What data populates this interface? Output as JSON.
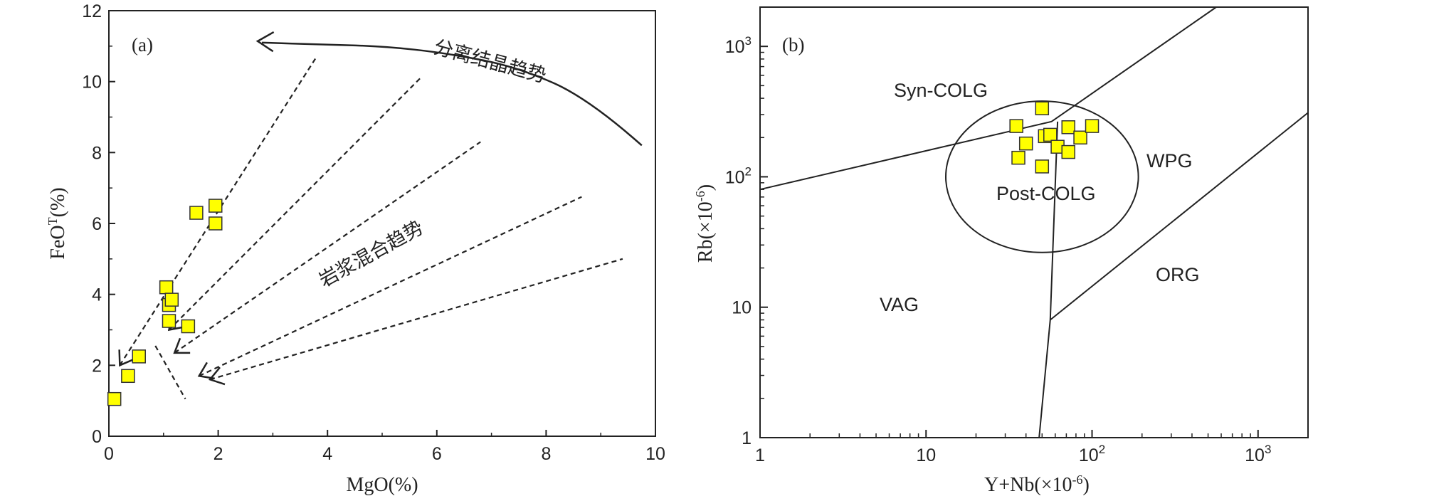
{
  "chart_data": [
    {
      "type": "scatter",
      "panel_label": "(a)",
      "xlabel": "MgO(%)",
      "ylabel": "FeO",
      "ylabel_sup": "T",
      "ylabel_tail": "(%)",
      "xlim": [
        0,
        10
      ],
      "ylim": [
        0,
        12
      ],
      "x_ticks": [
        0,
        2,
        4,
        6,
        8,
        10
      ],
      "y_ticks": [
        0,
        2,
        4,
        6,
        8,
        10,
        12
      ],
      "x_tick_labels": [
        "0",
        "2",
        "4",
        "6",
        "8",
        "10"
      ],
      "y_tick_labels": [
        "0",
        "2",
        "4",
        "6",
        "8",
        "10",
        "12"
      ],
      "points": [
        {
          "x": 0.1,
          "y": 1.05
        },
        {
          "x": 0.35,
          "y": 1.7
        },
        {
          "x": 0.55,
          "y": 2.25
        },
        {
          "x": 1.05,
          "y": 4.2
        },
        {
          "x": 1.1,
          "y": 3.7
        },
        {
          "x": 1.15,
          "y": 3.85
        },
        {
          "x": 1.1,
          "y": 3.25
        },
        {
          "x": 1.45,
          "y": 3.1
        },
        {
          "x": 1.6,
          "y": 6.3
        },
        {
          "x": 1.95,
          "y": 6.5
        },
        {
          "x": 1.95,
          "y": 6.0
        }
      ],
      "marker_color": "#ffff00",
      "dashed_lines": [
        {
          "from": [
            0.2,
            2.0
          ],
          "to": [
            3.8,
            10.7
          ]
        },
        {
          "from": [
            1.1,
            3.0
          ],
          "to": [
            5.7,
            10.1
          ]
        },
        {
          "from": [
            1.2,
            2.35
          ],
          "to": [
            6.8,
            8.3
          ]
        },
        {
          "from": [
            1.65,
            1.7
          ],
          "to": [
            8.65,
            6.75
          ]
        },
        {
          "from": [
            1.85,
            1.6
          ],
          "to": [
            9.4,
            5.0
          ]
        },
        {
          "from": [
            0.85,
            2.55
          ],
          "to": [
            1.4,
            1.05
          ]
        }
      ],
      "fractionation_curve": [
        [
          9.75,
          8.2
        ],
        [
          8.8,
          9.5
        ],
        [
          7.5,
          10.4
        ],
        [
          6.2,
          10.8
        ],
        [
          5.0,
          11.0
        ],
        [
          3.8,
          11.05
        ],
        [
          2.8,
          11.1
        ]
      ],
      "annotations": {
        "fractional_crystallization": "分离结晶趋势",
        "magma_mixing": "岩浆混合趋势"
      }
    },
    {
      "type": "scatter",
      "panel_label": "(b)",
      "scale": "log-log",
      "xlabel": "Y+Nb(×10",
      "xlabel_sup": "-6",
      "xlabel_tail": ")",
      "ylabel": "Rb(×10",
      "ylabel_sup": "-6",
      "ylabel_tail": ")",
      "xlim": [
        1,
        2000
      ],
      "ylim": [
        1,
        2000
      ],
      "x_ticks": [
        {
          "value": 1,
          "base": "1",
          "exp": ""
        },
        {
          "value": 10,
          "base": "10",
          "exp": ""
        },
        {
          "value": 100,
          "base": "10",
          "exp": "2"
        },
        {
          "value": 1000,
          "base": "10",
          "exp": "3"
        }
      ],
      "y_ticks": [
        {
          "value": 1,
          "base": "1",
          "exp": ""
        },
        {
          "value": 10,
          "base": "10",
          "exp": ""
        },
        {
          "value": 100,
          "base": "10",
          "exp": "2"
        },
        {
          "value": 1000,
          "base": "10",
          "exp": "3"
        }
      ],
      "points": [
        {
          "x": 35,
          "y": 245
        },
        {
          "x": 40,
          "y": 180
        },
        {
          "x": 36,
          "y": 140
        },
        {
          "x": 50,
          "y": 335
        },
        {
          "x": 52,
          "y": 205
        },
        {
          "x": 56,
          "y": 210
        },
        {
          "x": 62,
          "y": 170
        },
        {
          "x": 72,
          "y": 240
        },
        {
          "x": 72,
          "y": 155
        },
        {
          "x": 85,
          "y": 200
        },
        {
          "x": 100,
          "y": 245
        },
        {
          "x": 50,
          "y": 120
        }
      ],
      "marker_color": "#ffff00",
      "boundaries": [
        {
          "points": [
            [
              1,
              80
            ],
            [
              57,
              265
            ],
            [
              560,
              2000
            ]
          ]
        },
        {
          "points": [
            [
              48,
              1
            ],
            [
              56,
              8
            ],
            [
              62,
              265
            ]
          ]
        },
        {
          "points": [
            [
              56,
              8
            ],
            [
              2000,
              310
            ]
          ]
        }
      ],
      "post_colg_circle": {
        "center": [
          50,
          100
        ],
        "radius_decades": 0.58
      },
      "regions": [
        "Syn-COLG",
        "WPG",
        "Post-COLG",
        "VAG",
        "ORG"
      ]
    }
  ]
}
